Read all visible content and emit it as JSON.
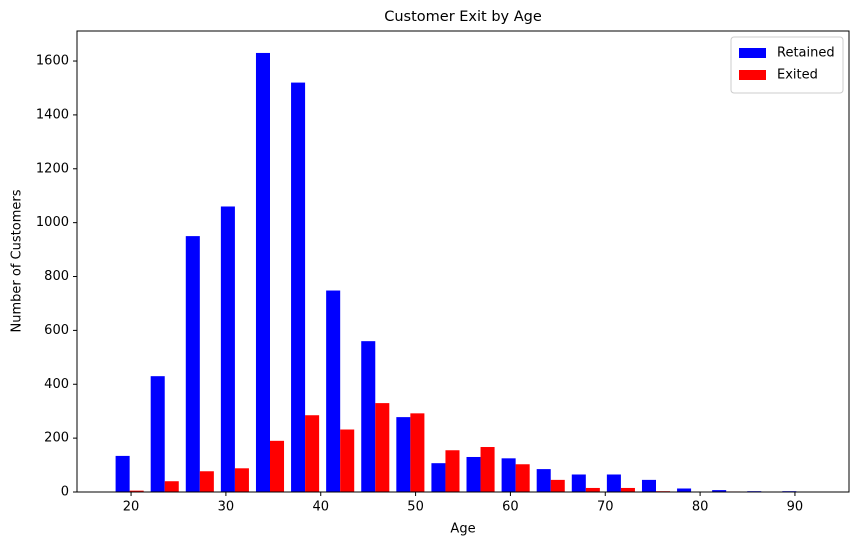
{
  "chart_data": {
    "type": "histogram",
    "title": "Customer Exit by Age",
    "x_label": "Age",
    "y_label": "Number of Customers",
    "bins": [
      18,
      21.7,
      25.4,
      29.1,
      32.8,
      36.5,
      40.2,
      43.9,
      47.6,
      51.3,
      55,
      58.7,
      62.4,
      66.1,
      69.8,
      73.5,
      77.2,
      80.9,
      84.6,
      88.3,
      92
    ],
    "series": [
      {
        "name": "Retained",
        "color": "#0000ff",
        "values": [
          134,
          430,
          950,
          1060,
          1630,
          1520,
          748,
          560,
          278,
          107,
          130,
          125,
          85,
          65,
          65,
          45,
          13,
          7,
          3,
          3
        ]
      },
      {
        "name": "Exited",
        "color": "#ff0000",
        "values": [
          5,
          40,
          77,
          88,
          190,
          285,
          232,
          330,
          292,
          155,
          167,
          103,
          45,
          15,
          15,
          3,
          0,
          2,
          0,
          0
        ]
      }
    ],
    "xlim": [
      14.3,
      95.7
    ],
    "xticks": [
      20,
      30,
      40,
      50,
      60,
      70,
      80,
      90
    ],
    "ylim": [
      0,
      1711.5
    ],
    "yticks": [
      0,
      200,
      400,
      600,
      800,
      1000,
      1200,
      1400,
      1600
    ],
    "legend": "upper right"
  }
}
